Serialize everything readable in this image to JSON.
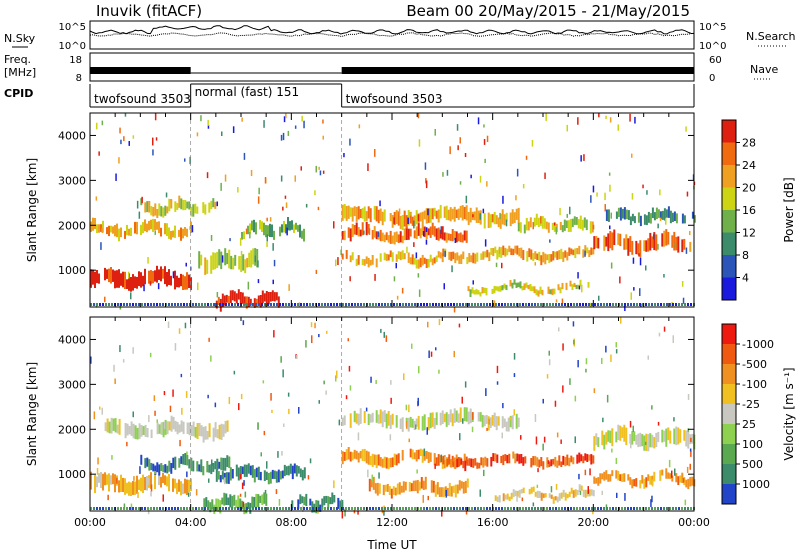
{
  "header": {
    "station": "Inuvik (fitACF)",
    "beam_range": "Beam 00  20/May/2015 - 21/May/2015"
  },
  "strip_noise": {
    "left_label": "N.Sky",
    "right_label": "N.Search",
    "ticks_left": [
      "10^5",
      "10^0"
    ],
    "ticks_right": [
      "10^5",
      "10^0"
    ]
  },
  "strip_freq": {
    "left_label_1": "Freq.",
    "left_label_2": "[MHz]",
    "right_label": "Nave",
    "ticks_left": [
      "18",
      "8"
    ],
    "ticks_right": [
      "60",
      "0"
    ]
  },
  "cpid": {
    "label": "CPID",
    "segments": [
      {
        "start_hour": 0,
        "end_hour": 4,
        "label": "twofsound 3503"
      },
      {
        "start_hour": 4,
        "end_hour": 10,
        "label": "normal (fast) 151"
      },
      {
        "start_hour": 10,
        "end_hour": 24,
        "label": "twofsound 3503"
      }
    ]
  },
  "chart_data": [
    {
      "type": "heatmap",
      "title": "",
      "xlabel": "",
      "ylabel": "Slant Range [km]",
      "x_range_hours": [
        0,
        24
      ],
      "ylim": [
        180,
        4500
      ],
      "y_ticks": [
        1000,
        2000,
        3000,
        4000
      ],
      "colorbar": {
        "label": "Power [dB]",
        "ticks": [
          "4",
          "8",
          "12",
          "16",
          "20",
          "24",
          "28"
        ],
        "colors": [
          "#1a1adf",
          "#2b55b8",
          "#3c8c6c",
          "#6fb04a",
          "#ccd414",
          "#f0a020",
          "#f06a10",
          "#dd2010"
        ]
      },
      "echo_bands": [
        {
          "start_hour": 0.0,
          "end_hour": 4.0,
          "center_km": 800,
          "width_km": 350,
          "level": 7
        },
        {
          "start_hour": 0.0,
          "end_hour": 4.0,
          "center_km": 1900,
          "width_km": 250,
          "level": 5
        },
        {
          "start_hour": 2.0,
          "end_hour": 5.0,
          "center_km": 2400,
          "width_km": 250,
          "level": 4
        },
        {
          "start_hour": 4.3,
          "end_hour": 6.8,
          "center_km": 1200,
          "width_km": 350,
          "level": 4
        },
        {
          "start_hour": 5.0,
          "end_hour": 7.5,
          "center_km": 350,
          "width_km": 250,
          "level": 7
        },
        {
          "start_hour": 6.0,
          "end_hour": 8.5,
          "center_km": 1900,
          "width_km": 250,
          "level": 3
        },
        {
          "start_hour": 10.0,
          "end_hour": 15.0,
          "center_km": 1800,
          "width_km": 250,
          "level": 6
        },
        {
          "start_hour": 10.0,
          "end_hour": 17.0,
          "center_km": 2200,
          "width_km": 300,
          "level": 5
        },
        {
          "start_hour": 10.0,
          "end_hour": 14.0,
          "center_km": 1250,
          "width_km": 200,
          "level": 5
        },
        {
          "start_hour": 14.0,
          "end_hour": 20.0,
          "center_km": 1350,
          "width_km": 200,
          "level": 5
        },
        {
          "start_hour": 15.0,
          "end_hour": 20.0,
          "center_km": 600,
          "width_km": 150,
          "level": 4
        },
        {
          "start_hour": 17.0,
          "end_hour": 20.0,
          "center_km": 2000,
          "width_km": 250,
          "level": 4
        },
        {
          "start_hour": 20.0,
          "end_hour": 24.0,
          "center_km": 1600,
          "width_km": 350,
          "level": 6
        },
        {
          "start_hour": 20.5,
          "end_hour": 24.0,
          "center_km": 2200,
          "width_km": 250,
          "level": 2
        }
      ]
    },
    {
      "type": "heatmap",
      "title": "",
      "xlabel": "Time UT",
      "ylabel": "Slant Range [km]",
      "x_range_hours": [
        0,
        24
      ],
      "x_ticks": [
        "00:00",
        "04:00",
        "08:00",
        "12:00",
        "16:00",
        "20:00",
        "00:00"
      ],
      "ylim": [
        180,
        4500
      ],
      "y_ticks": [
        1000,
        2000,
        3000,
        4000
      ],
      "colorbar": {
        "label": "Velocity [m s⁻¹]",
        "ticks": [
          "1000",
          "500",
          "100",
          "25",
          "-25",
          "-100",
          "-500",
          "-1000"
        ],
        "colors": [
          "#2244c8",
          "#3c8c6c",
          "#5aa850",
          "#8ed050",
          "#c8c8c0",
          "#f0c020",
          "#f09020",
          "#f05a10",
          "#ee1a10"
        ]
      },
      "echo_bands": [
        {
          "start_hour": 0.0,
          "end_hour": 4.0,
          "center_km": 800,
          "width_km": 350,
          "level": 5
        },
        {
          "start_hour": 0.5,
          "end_hour": 5.5,
          "center_km": 2000,
          "width_km": 300,
          "level": 4
        },
        {
          "start_hour": 2.0,
          "end_hour": 5.5,
          "center_km": 1200,
          "width_km": 250,
          "level": 1
        },
        {
          "start_hour": 4.5,
          "end_hour": 7.0,
          "center_km": 350,
          "width_km": 250,
          "level": 2
        },
        {
          "start_hour": 5.0,
          "end_hour": 8.5,
          "center_km": 1000,
          "width_km": 250,
          "level": 1
        },
        {
          "start_hour": 8.0,
          "end_hour": 10.0,
          "center_km": 350,
          "width_km": 250,
          "level": 1
        },
        {
          "start_hour": 10.0,
          "end_hour": 17.0,
          "center_km": 2200,
          "width_km": 300,
          "level": 4
        },
        {
          "start_hour": 10.0,
          "end_hour": 15.0,
          "center_km": 1350,
          "width_km": 250,
          "level": 6
        },
        {
          "start_hour": 11.0,
          "end_hour": 15.0,
          "center_km": 700,
          "width_km": 250,
          "level": 6
        },
        {
          "start_hour": 14.0,
          "end_hour": 20.0,
          "center_km": 1300,
          "width_km": 200,
          "level": 7
        },
        {
          "start_hour": 16.0,
          "end_hour": 20.0,
          "center_km": 550,
          "width_km": 150,
          "level": 5
        },
        {
          "start_hour": 20.0,
          "end_hour": 24.0,
          "center_km": 1800,
          "width_km": 350,
          "level": 4
        },
        {
          "start_hour": 20.0,
          "end_hour": 24.0,
          "center_km": 900,
          "width_km": 200,
          "level": 6
        }
      ]
    }
  ]
}
